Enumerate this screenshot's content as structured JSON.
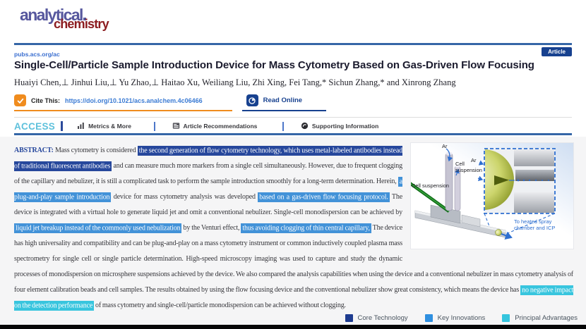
{
  "journal": {
    "name_line1": "analytical",
    "name_line2": "chemistry"
  },
  "header": {
    "site_url": "pubs.acs.org/ac",
    "badge": "Article"
  },
  "article": {
    "title": "Single-Cell/Particle Sample Introduction Device for Mass Cytometry Based on Gas-Driven Flow Focusing",
    "authors": "Huaiyi Chen,⊥ Jinhui Liu,⊥ Yu Zhao,⊥ Haitao Xu, Weiliang Liu, Zhi Xing, Fei Tang,* Sichun Zhang,* and Xinrong Zhang"
  },
  "cite_bar": {
    "cite_label": "Cite This:",
    "doi": "https://doi.org/10.1021/acs.analchem.4c06466",
    "read_online_label": "Read Online"
  },
  "access_bar": {
    "access": "ACCESS",
    "items": [
      "Metrics & More",
      "Article Recommendations",
      "Supporting Information"
    ]
  },
  "abstract": {
    "label": "ABSTRACT:",
    "segments": [
      {
        "s": "normal",
        "t": "Mass cytometry is considered "
      },
      {
        "s": "core",
        "t": "the second generation of flow cytometry technology, which uses metal-labeled antibodies instead of traditional fluorescent antibodies"
      },
      {
        "s": "normal",
        "t": " and can measure much more markers from a single cell simultaneously. However, due to frequent clogging of the capillary and nebulizer, it is still a complicated task to perform the sample introduction smoothly for a long-term determination. Herein, "
      },
      {
        "s": "key",
        "t": "a plug-and-play sample introduction"
      },
      {
        "s": "normal",
        "t": " device for mass cytometry analysis was developed "
      },
      {
        "s": "key",
        "t": "based on a gas-driven flow focusing protocol."
      },
      {
        "s": "normal",
        "t": " The device is integrated with a virtual hole to generate liquid jet and omit a conventional nebulizer. Single-cell monodispersion can be achieved by "
      },
      {
        "s": "key",
        "t": "liquid jet breakup instead of the commonly used nebulization"
      },
      {
        "s": "normal",
        "t": " by the Venturi effect, "
      },
      {
        "s": "key",
        "t": "thus avoiding clogging of thin central capillary,"
      },
      {
        "s": "normal",
        "t": " The device has high universality and compatibility and can be plug-and-play on a mass cytometry instrument or common inductively coupled plasma mass spectrometry for single cell or single particle determination. High-speed microscopy imaging was used to capture and study the dynamic processes of monodispersion on microsphere suspensions achieved by the device. We also compared the analysis capabilities when using the device and a conventional nebulizer in mass cytometry analysis of four element calibration beads and cell samples. The results obtained by using the flow focusing device and the conventional nebulizer show great consistency, which means the device has "
      },
      {
        "s": "principal",
        "t": "no negative impact on the detection performance"
      },
      {
        "s": "normal",
        "t": " of mass cytometry and single-cell/particle monodispersion can be achieved without clogging."
      }
    ]
  },
  "figure": {
    "labels": {
      "ar_top": "Ar",
      "cell_suspension_top": "Cell suspension",
      "cell_suspension_left": "Cell suspension",
      "ar_inset": "Ar",
      "outlet": "To heated spray chamber and ICP"
    }
  },
  "legend": {
    "items": [
      {
        "label": "Core Technology",
        "color": "#1e3c90"
      },
      {
        "label": "Key Innovations",
        "color": "#2f8fe0"
      },
      {
        "label": "Principal Advantages",
        "color": "#35c5de"
      }
    ]
  },
  "colors": {
    "core_highlight": "#26479c",
    "key_highlight": "#4292d8",
    "principal_highlight": "#38c5de",
    "accent_orange": "#f08c1e",
    "link_blue": "#3b7bd4",
    "rule_blue": "#3566a7",
    "badge_blue": "#17418f",
    "access_cyan": "#5ec1dc"
  }
}
